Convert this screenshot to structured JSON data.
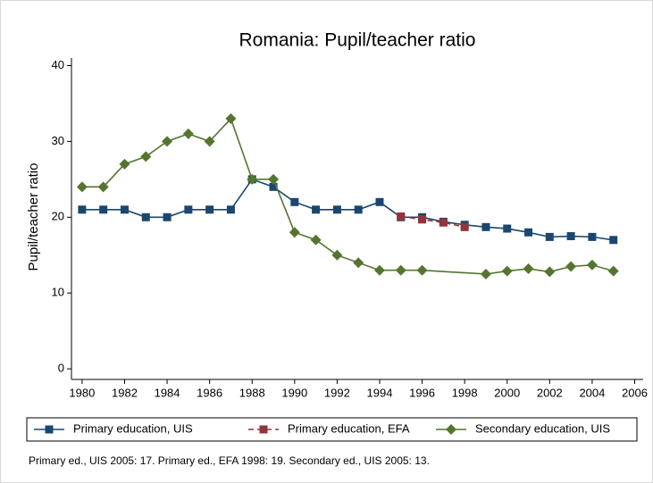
{
  "chart_data": {
    "type": "line",
    "title": "Romania: Pupil/teacher ratio",
    "ylabel": "Pupil/teacher ratio",
    "note": "Primary ed., UIS 2005: 17. Primary ed., EFA 1998: 19. Secondary ed., UIS 2005: 13.",
    "xlim": [
      1979.5,
      2006.4
    ],
    "ylim": [
      -1.4,
      41
    ],
    "xticks": [
      1980,
      1982,
      1984,
      1986,
      1988,
      1990,
      1992,
      1994,
      1996,
      1998,
      2000,
      2002,
      2004,
      2006
    ],
    "yticks": [
      0,
      10,
      20,
      30,
      40
    ],
    "series": [
      {
        "name": "Primary education, UIS",
        "color": "#1a476f",
        "marker": "square",
        "dash": false,
        "x": [
          1980,
          1981,
          1982,
          1983,
          1984,
          1985,
          1986,
          1987,
          1988,
          1989,
          1990,
          1991,
          1992,
          1993,
          1994,
          1995,
          1996,
          1997,
          1998,
          1999,
          2000,
          2001,
          2002,
          2003,
          2004,
          2005
        ],
        "values": [
          21,
          21,
          21,
          20,
          20,
          21,
          21,
          21,
          25,
          24,
          22,
          21,
          21,
          21,
          22,
          20,
          20,
          19.4,
          19,
          18.7,
          18.5,
          18,
          17.4,
          17.5,
          17.4,
          17
        ]
      },
      {
        "name": "Primary education, EFA",
        "color": "#90353b",
        "marker": "square",
        "dash": true,
        "x": [
          1995,
          1996,
          1997,
          1998
        ],
        "values": [
          20.1,
          19.7,
          19.3,
          18.7
        ]
      },
      {
        "name": "Secondary education, UIS",
        "color": "#55752f",
        "marker": "diamond",
        "dash": false,
        "x": [
          1980,
          1981,
          1982,
          1983,
          1984,
          1985,
          1986,
          1987,
          1988,
          1989,
          1990,
          1991,
          1992,
          1993,
          1994,
          1995,
          1996,
          1999,
          2000,
          2001,
          2002,
          2003,
          2004,
          2005
        ],
        "values": [
          24,
          24,
          27,
          28,
          30,
          31,
          30,
          33,
          25,
          25,
          18,
          17,
          15,
          14,
          13,
          13,
          13,
          12.5,
          12.9,
          13.2,
          12.8,
          13.5,
          13.7,
          12.9
        ]
      }
    ]
  }
}
